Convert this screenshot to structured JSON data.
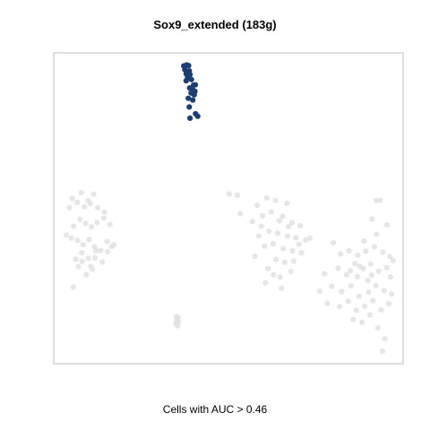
{
  "chart_data": {
    "type": "scatter",
    "title": "Sox9_extended (183g)",
    "xlabel": "Cells with AUC > 0.46",
    "ylabel": "",
    "xlim": [
      0,
      100
    ],
    "ylim": [
      0,
      100
    ],
    "grid": false,
    "axes_shown": false,
    "colors": {
      "above_threshold": "#1b3f74",
      "below_threshold": "#e2e2e2",
      "frame": "#bdbdbd"
    },
    "series": [
      {
        "points": [
          [
            37.2,
            95.8
          ],
          [
            38.0,
            96.1
          ],
          [
            38.6,
            95.9
          ],
          [
            37.5,
            94.6
          ],
          [
            38.8,
            94.2
          ],
          [
            37.9,
            93.3
          ],
          [
            39.0,
            93.0
          ],
          [
            38.3,
            92.1
          ],
          [
            39.4,
            91.4
          ],
          [
            40.0,
            89.6
          ],
          [
            40.5,
            89.7
          ],
          [
            38.9,
            88.7
          ],
          [
            39.9,
            88.0
          ],
          [
            39.3,
            87.1
          ],
          [
            40.2,
            86.5
          ],
          [
            38.5,
            85.4
          ],
          [
            39.8,
            84.8
          ],
          [
            38.8,
            82.6
          ],
          [
            40.6,
            80.4
          ],
          [
            39.0,
            79.0
          ],
          [
            41.2,
            79.6
          ],
          [
            37.9,
            91.0
          ],
          [
            40.4,
            87.6
          ]
        ]
      },
      {
        "points": [
          [
            5.3,
            53.1
          ],
          [
            7.9,
            55.0
          ],
          [
            9.8,
            52.5
          ],
          [
            11.4,
            54.5
          ],
          [
            4.5,
            50.2
          ],
          [
            6.7,
            51.9
          ],
          [
            8.8,
            50.5
          ],
          [
            10.5,
            51.5
          ],
          [
            12.6,
            50.2
          ],
          [
            14.5,
            48.8
          ],
          [
            3.6,
            41.4
          ],
          [
            5.7,
            44.2
          ],
          [
            7.5,
            46.4
          ],
          [
            9.1,
            45.1
          ],
          [
            10.8,
            44.0
          ],
          [
            12.4,
            45.4
          ],
          [
            14.3,
            46.9
          ],
          [
            16.1,
            44.8
          ],
          [
            5.0,
            40.4
          ],
          [
            6.8,
            39.7
          ],
          [
            8.4,
            38.3
          ],
          [
            10.1,
            39.9
          ],
          [
            11.7,
            37.6
          ],
          [
            13.4,
            36.4
          ],
          [
            15.3,
            39.3
          ],
          [
            17.2,
            38.3
          ],
          [
            6.3,
            33.6
          ],
          [
            8.0,
            35.7
          ],
          [
            9.9,
            33.9
          ],
          [
            11.8,
            34.0
          ],
          [
            13.9,
            32.7
          ],
          [
            15.4,
            36.0
          ],
          [
            16.6,
            37.7
          ],
          [
            7.1,
            31.2
          ],
          [
            10.6,
            31.3
          ],
          [
            12.1,
            36.3
          ],
          [
            9.3,
            28.6
          ],
          [
            11.0,
            30.4
          ],
          [
            5.6,
            24.6
          ],
          [
            8.1,
            32.9
          ],
          [
            35.1,
            15.1
          ],
          [
            35.3,
            14.3
          ],
          [
            35.5,
            13.2
          ],
          [
            35.4,
            12.2
          ],
          [
            35.2,
            13.7
          ],
          [
            35.6,
            14.8
          ],
          [
            35.0,
            12.9
          ],
          [
            35.7,
            13.6
          ],
          [
            35.3,
            12.6
          ],
          [
            50.2,
            54.6
          ],
          [
            52.5,
            54.2
          ],
          [
            53.4,
            48.3
          ],
          [
            58.2,
            51.0
          ],
          [
            61.0,
            53.3
          ],
          [
            63.5,
            52.5
          ],
          [
            66.8,
            51.6
          ],
          [
            56.9,
            45.8
          ],
          [
            59.8,
            47.6
          ],
          [
            62.3,
            48.8
          ],
          [
            65.5,
            47.4
          ],
          [
            68.2,
            45.4
          ],
          [
            70.6,
            44.4
          ],
          [
            59.4,
            44.2
          ],
          [
            61.6,
            42.6
          ],
          [
            64.1,
            42.0
          ],
          [
            66.9,
            41.0
          ],
          [
            69.3,
            40.5
          ],
          [
            72.1,
            39.8
          ],
          [
            60.3,
            37.8
          ],
          [
            62.8,
            38.6
          ],
          [
            65.7,
            37.0
          ],
          [
            68.3,
            36.3
          ],
          [
            70.9,
            35.7
          ],
          [
            63.6,
            33.5
          ],
          [
            66.1,
            32.6
          ],
          [
            68.7,
            33.0
          ],
          [
            61.3,
            30.6
          ],
          [
            64.8,
            27.9
          ],
          [
            67.9,
            29.7
          ],
          [
            60.6,
            26.0
          ],
          [
            62.9,
            28.6
          ],
          [
            65.2,
            24.3
          ],
          [
            70.2,
            38.4
          ],
          [
            57.6,
            34.5
          ],
          [
            73.3,
            40.4
          ],
          [
            58.7,
            41.1
          ],
          [
            64.6,
            46.0
          ],
          [
            67.2,
            44.1
          ],
          [
            92.3,
            52.5
          ],
          [
            93.4,
            52.6
          ],
          [
            95.4,
            44.7
          ],
          [
            91.1,
            46.5
          ],
          [
            80.0,
            38.9
          ],
          [
            82.1,
            35.3
          ],
          [
            84.5,
            36.3
          ],
          [
            87.0,
            34.9
          ],
          [
            89.3,
            36.2
          ],
          [
            91.8,
            37.6
          ],
          [
            94.2,
            35.9
          ],
          [
            96.2,
            34.5
          ],
          [
            81.4,
            30.7
          ],
          [
            83.8,
            28.6
          ],
          [
            86.2,
            32.2
          ],
          [
            88.6,
            30.6
          ],
          [
            90.7,
            32.1
          ],
          [
            93.0,
            29.7
          ],
          [
            95.3,
            30.9
          ],
          [
            97.1,
            33.2
          ],
          [
            79.6,
            24.9
          ],
          [
            82.4,
            23.2
          ],
          [
            85.1,
            25.1
          ],
          [
            87.4,
            21.7
          ],
          [
            89.9,
            26.8
          ],
          [
            92.2,
            25.1
          ],
          [
            94.6,
            23.5
          ],
          [
            96.7,
            22.4
          ],
          [
            81.8,
            18.4
          ],
          [
            84.3,
            20.1
          ],
          [
            86.6,
            17.2
          ],
          [
            89.0,
            18.5
          ],
          [
            91.4,
            20.3
          ],
          [
            93.7,
            17.3
          ],
          [
            95.9,
            19.3
          ],
          [
            76.1,
            23.3
          ],
          [
            78.3,
            19.4
          ],
          [
            77.5,
            28.9
          ],
          [
            85.7,
            14.2
          ],
          [
            88.2,
            13.3
          ],
          [
            90.5,
            15.7
          ],
          [
            92.8,
            11.5
          ],
          [
            94.8,
            8.0
          ],
          [
            94.1,
            4.0
          ],
          [
            92.4,
            41.6
          ],
          [
            88.8,
            39.5
          ],
          [
            86.9,
            28.0
          ],
          [
            90.1,
            23.0
          ],
          [
            84.9,
            29.9
          ],
          [
            96.4,
            27.9
          ],
          [
            87.6,
            31.3
          ],
          [
            91.0,
            28.5
          ]
        ]
      }
    ]
  }
}
